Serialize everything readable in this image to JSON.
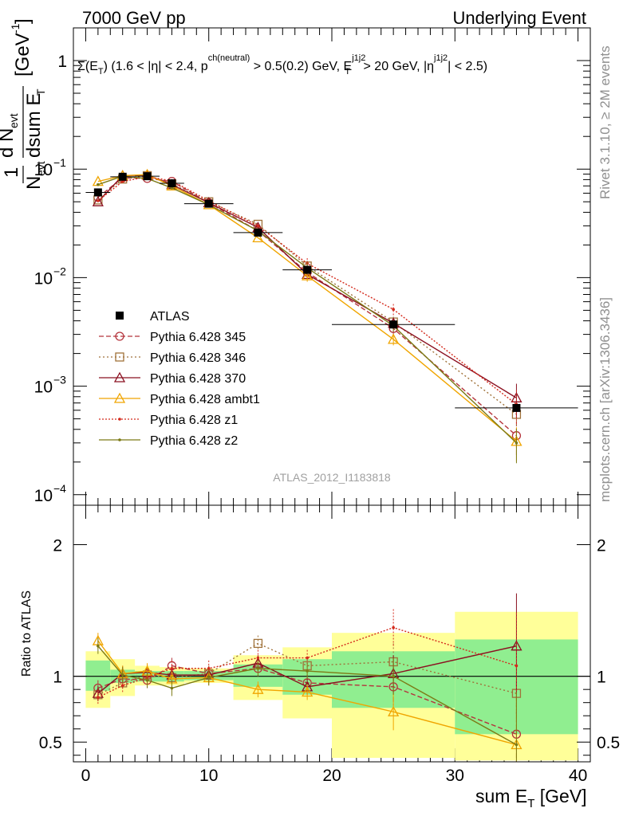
{
  "header": {
    "left": "7000 GeV pp",
    "right": "Underlying Event"
  },
  "side_labels": {
    "rivet": "Rivet 3.1.10, ≥ 2M events",
    "mcplots": "mcplots.cern.ch [arXiv:1306.3436]"
  },
  "watermark": "ATLAS_2012_I1183818",
  "chart_data": [
    {
      "type": "line",
      "title": "Σ(E_T) (1.6 < |η| < 2.4, p_T^ch(neutral) > 0.5(0.2) GeV, E_T^j1j2 > 20 GeV, |η^j1j2| < 2.5)",
      "xlabel": "sum E_T [GeV]",
      "ylabel": "1/N_evt dN_evt/dsum E_T [GeV^-1]",
      "yscale": "log",
      "xlim": [
        -1,
        41
      ],
      "ylim": [
        8e-05,
        2
      ],
      "y_tick_labels": [
        "1",
        "10^-1",
        "10^-2",
        "10^-3",
        "10^-4"
      ],
      "legend_position": "middle-left",
      "data": {
        "name": "ATLAS",
        "color": "#000000",
        "bins": [
          [
            0,
            2
          ],
          [
            2,
            4
          ],
          [
            4,
            6
          ],
          [
            6,
            8
          ],
          [
            8,
            12
          ],
          [
            12,
            16
          ],
          [
            16,
            20
          ],
          [
            20,
            30
          ],
          [
            30,
            40
          ]
        ],
        "x": [
          1,
          3,
          5,
          7,
          10,
          14,
          18,
          25,
          35
        ],
        "y": [
          0.061,
          0.085,
          0.086,
          0.074,
          0.048,
          0.026,
          0.0118,
          0.0037,
          0.00063
        ]
      },
      "series": [
        {
          "name": "Pythia 6.428 345",
          "color": "#b5343c",
          "dash": "6,3",
          "marker": "circle",
          "x": [
            1,
            3,
            5,
            7,
            10,
            14,
            18,
            25,
            35
          ],
          "y": [
            0.055,
            0.083,
            0.082,
            0.077,
            0.049,
            0.027,
            0.0112,
            0.0034,
            0.00035
          ]
        },
        {
          "name": "Pythia 6.428 346",
          "color": "#a0723a",
          "dash": "2,3",
          "marker": "square",
          "x": [
            1,
            3,
            5,
            7,
            10,
            14,
            18,
            25,
            35
          ],
          "y": [
            0.052,
            0.081,
            0.087,
            0.073,
            0.05,
            0.031,
            0.0128,
            0.0039,
            0.00055
          ]
        },
        {
          "name": "Pythia 6.428 370",
          "color": "#8b1020",
          "dash": "",
          "marker": "triangle",
          "x": [
            1,
            3,
            5,
            7,
            10,
            14,
            18,
            25,
            35
          ],
          "y": [
            0.05,
            0.087,
            0.088,
            0.072,
            0.049,
            0.029,
            0.0107,
            0.0038,
            0.00078
          ]
        },
        {
          "name": "Pythia 6.428 ambt1",
          "color": "#f0a500",
          "dash": "",
          "marker": "triangle",
          "x": [
            1,
            3,
            5,
            7,
            10,
            14,
            18,
            25,
            35
          ],
          "y": [
            0.077,
            0.087,
            0.089,
            0.07,
            0.047,
            0.0233,
            0.0104,
            0.0027,
            0.00031
          ]
        },
        {
          "name": "Pythia 6.428 z1",
          "color": "#d42a1c",
          "dash": "2,2",
          "marker": "dot",
          "x": [
            1,
            3,
            5,
            7,
            10,
            14,
            18,
            25,
            35
          ],
          "y": [
            0.051,
            0.077,
            0.085,
            0.078,
            0.051,
            0.03,
            0.0135,
            0.0051,
            0.00068
          ]
        },
        {
          "name": "Pythia 6.428 z2",
          "color": "#7c7a16",
          "dash": "",
          "marker": "dot",
          "x": [
            1,
            3,
            5,
            7,
            10,
            14,
            18,
            25,
            35
          ],
          "y": [
            0.072,
            0.086,
            0.082,
            0.067,
            0.047,
            0.027,
            0.0123,
            0.0036,
            0.0003
          ]
        }
      ]
    },
    {
      "type": "line",
      "title": "",
      "xlabel": "sum E_T [GeV]",
      "ylabel": "Ratio to ATLAS",
      "xlim": [
        -1,
        41
      ],
      "ylim": [
        0.35,
        2.3
      ],
      "y_ticks": [
        0.5,
        1,
        2
      ],
      "x_ticks": [
        0,
        10,
        20,
        30,
        40
      ],
      "reference": 1,
      "bands": {
        "bins": [
          [
            0,
            2
          ],
          [
            2,
            4
          ],
          [
            4,
            6
          ],
          [
            6,
            8
          ],
          [
            8,
            12
          ],
          [
            12,
            16
          ],
          [
            16,
            20
          ],
          [
            20,
            30
          ],
          [
            30,
            40
          ]
        ],
        "inner": [
          [
            0.89,
            1.12
          ],
          [
            0.95,
            1.05
          ],
          [
            0.96,
            1.04
          ],
          [
            0.96,
            1.04
          ],
          [
            0.97,
            1.04
          ],
          [
            0.92,
            1.09
          ],
          [
            0.86,
            1.13
          ],
          [
            0.76,
            1.19
          ],
          [
            0.56,
            1.28
          ]
        ],
        "outer": [
          [
            0.76,
            1.19
          ],
          [
            0.85,
            1.13
          ],
          [
            0.93,
            1.08
          ],
          [
            0.93,
            1.07
          ],
          [
            0.95,
            1.06
          ],
          [
            0.82,
            1.16
          ],
          [
            0.68,
            1.22
          ],
          [
            0.38,
            1.33
          ],
          [
            0.36,
            1.49
          ]
        ],
        "inner_color": "#90ee90",
        "outer_color": "#ffff99"
      },
      "series": [
        {
          "name": "Pythia 6.428 345",
          "x": [
            1,
            3,
            5,
            7,
            10,
            14,
            18,
            25,
            35
          ],
          "y": [
            0.91,
            0.98,
            0.97,
            1.08,
            1.02,
            1.06,
            0.95,
            0.92,
            0.56
          ]
        },
        {
          "name": "Pythia 6.428 346",
          "x": [
            1,
            3,
            5,
            7,
            10,
            14,
            18,
            25,
            35
          ],
          "y": [
            0.86,
            0.95,
            1.01,
            0.99,
            1.02,
            1.25,
            1.08,
            1.11,
            0.87
          ]
        },
        {
          "name": "Pythia 6.428 370",
          "x": [
            1,
            3,
            5,
            7,
            10,
            14,
            18,
            25,
            35
          ],
          "y": [
            0.87,
            1.02,
            1.03,
            1.01,
            1.01,
            1.1,
            0.92,
            1.02,
            1.23
          ]
        },
        {
          "name": "Pythia 6.428 ambt1",
          "x": [
            1,
            3,
            5,
            7,
            10,
            14,
            18,
            25,
            35
          ],
          "y": [
            1.27,
            1.02,
            1.04,
            0.98,
            0.99,
            0.9,
            0.88,
            0.73,
            0.48
          ]
        },
        {
          "name": "Pythia 6.428 z1",
          "x": [
            1,
            3,
            5,
            7,
            10,
            14,
            18,
            25,
            35
          ],
          "y": [
            0.84,
            0.93,
            0.99,
            1.06,
            1.06,
            1.14,
            1.14,
            1.37,
            1.08
          ]
        },
        {
          "name": "Pythia 6.428 z2",
          "x": [
            1,
            3,
            5,
            7,
            10,
            14,
            18,
            25,
            35
          ],
          "y": [
            1.23,
            1.01,
            0.97,
            0.91,
            0.99,
            1.06,
            1.04,
            1.0,
            0.48
          ]
        }
      ]
    }
  ]
}
